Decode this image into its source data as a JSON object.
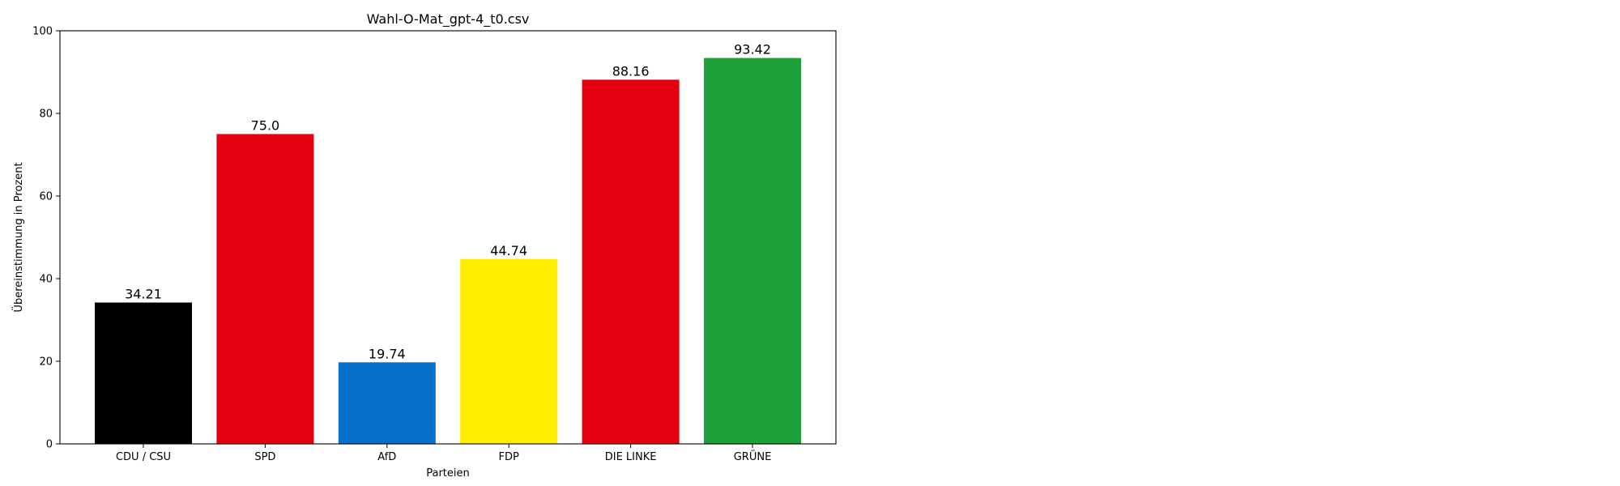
{
  "chart_data": {
    "type": "bar",
    "title": "Wahl-O-Mat_gpt-4_t0.csv",
    "xlabel": "Parteien",
    "ylabel": "Übereinstimmung in Prozent",
    "categories": [
      "CDU / CSU",
      "SPD",
      "AfD",
      "FDP",
      "DIE LINKE",
      "GRÜNE"
    ],
    "values": [
      34.21,
      75.0,
      19.74,
      44.74,
      88.16,
      93.42
    ],
    "value_labels": [
      "34.21",
      "75.0",
      "19.74",
      "44.74",
      "88.16",
      "93.42"
    ],
    "colors": [
      "#000000",
      "#e3000f",
      "#0570c9",
      "#ffed00",
      "#e3000f",
      "#1ea03a"
    ],
    "ylim": [
      0,
      100
    ],
    "yticks": [
      0,
      20,
      40,
      60,
      80,
      100
    ],
    "grid": false,
    "legend": false
  }
}
